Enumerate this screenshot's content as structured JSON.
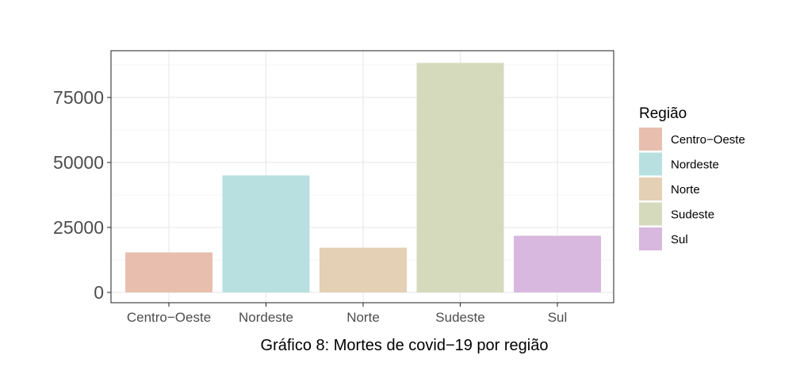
{
  "chart_data": {
    "type": "bar",
    "categories": [
      "Centro−Oeste",
      "Nordeste",
      "Norte",
      "Sudeste",
      "Sul"
    ],
    "values": [
      15400,
      45000,
      17200,
      88300,
      21800
    ],
    "xlabel": "Gráfico 8: Mortes de covid−19 por região",
    "ylabel": "",
    "ylim": [
      0,
      93000
    ],
    "yticks": [
      0,
      25000,
      50000,
      75000
    ],
    "ytick_labels": [
      "0",
      "25000",
      "50000",
      "75000"
    ],
    "grid": true,
    "legend": {
      "title": "Região",
      "placement": "right",
      "entries": [
        "Centro−Oeste",
        "Nordeste",
        "Norte",
        "Sudeste",
        "Sul"
      ]
    },
    "colors": [
      "#e8bfae",
      "#b8e0e0",
      "#e4d0b4",
      "#d6dabd",
      "#d8b8de"
    ]
  }
}
